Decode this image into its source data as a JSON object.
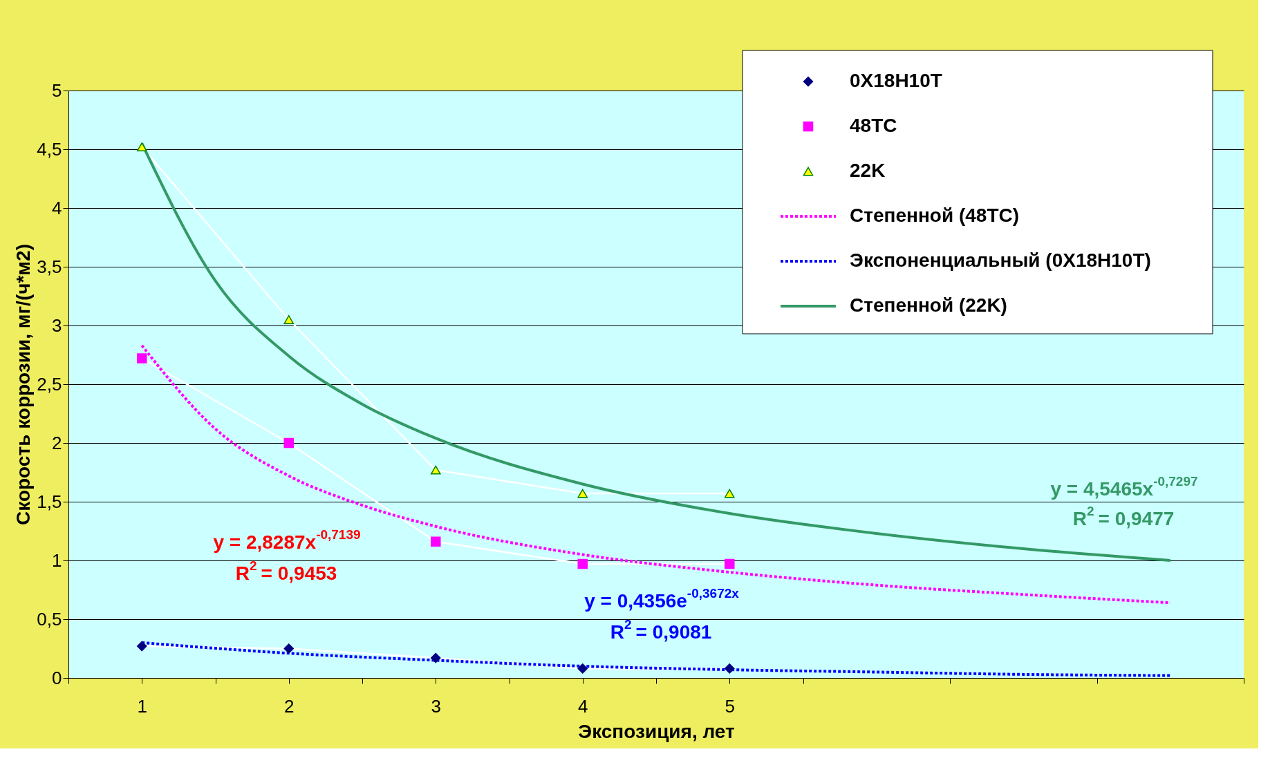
{
  "chart_data": {
    "type": "line",
    "xlabel": "Экспозиция, лет",
    "ylabel": "Скорость коррозии, мг/(ч*м2)",
    "xlim": [
      0.5,
      8.5
    ],
    "xticks": [
      {
        "value": 0.5,
        "label": null
      },
      {
        "value": 1,
        "label": "1"
      },
      {
        "value": 1.5,
        "label": null
      },
      {
        "value": 2,
        "label": "2"
      },
      {
        "value": 2.5,
        "label": null
      },
      {
        "value": 3,
        "label": "3"
      },
      {
        "value": 3.5,
        "label": null
      },
      {
        "value": 4,
        "label": "4"
      },
      {
        "value": 4.5,
        "label": null
      },
      {
        "value": 5,
        "label": "5"
      },
      {
        "value": 5.5,
        "label": null
      },
      {
        "value": 6.5,
        "label": null
      },
      {
        "value": 7.5,
        "label": null
      },
      {
        "value": 8.5,
        "label": null
      }
    ],
    "ylim": [
      0,
      5
    ],
    "yticks": [
      0,
      {
        "value": 0.5,
        "label": "0,5"
      },
      1,
      {
        "value": 1.5,
        "label": "1,5"
      },
      2,
      {
        "value": 2.5,
        "label": "2,5"
      },
      3,
      {
        "value": 3.5,
        "label": "3,5"
      },
      4,
      {
        "value": 4.5,
        "label": "4,5"
      },
      5
    ],
    "grid": "y",
    "legend": "top right",
    "series": [
      {
        "name": "0X18H10T",
        "marker": "diamond",
        "color": "#000080",
        "x": [
          1,
          2,
          3,
          4,
          5
        ],
        "values": [
          0.27,
          0.25,
          0.17,
          0.08,
          0.08
        ]
      },
      {
        "name": "48TC",
        "marker": "square",
        "color": "#ff00ff",
        "x": [
          1,
          2,
          3,
          4,
          5
        ],
        "values": [
          2.72,
          2.0,
          1.16,
          0.97,
          0.97
        ]
      },
      {
        "name": "22K",
        "marker": "triangle",
        "color": "#ffff00",
        "x": [
          1,
          2,
          3,
          4,
          5
        ],
        "values": [
          4.52,
          3.05,
          1.77,
          1.57,
          1.57
        ]
      },
      {
        "name": "Степенной (48TC)",
        "marker": "none",
        "line_style": "dotted",
        "color": "#ff00ff",
        "x": [
          1,
          1.5,
          2,
          2.5,
          3,
          4,
          5,
          6,
          7,
          8
        ],
        "values": [
          2.83,
          2.12,
          1.72,
          1.47,
          1.29,
          1.05,
          0.9,
          0.79,
          0.71,
          0.64
        ]
      },
      {
        "name": "Экспоненциальный (0X18H10T)",
        "marker": "none",
        "line_style": "dotted",
        "color": "#0000ff",
        "x": [
          1,
          2,
          3,
          4,
          5,
          6,
          7,
          8
        ],
        "values": [
          0.3,
          0.21,
          0.15,
          0.1,
          0.07,
          0.05,
          0.03,
          0.02
        ]
      },
      {
        "name": "Степенной (22K)",
        "marker": "none",
        "line_style": "solid",
        "color": "#339966",
        "x": [
          1,
          1.5,
          2,
          2.5,
          3,
          4,
          5,
          6,
          7,
          8
        ],
        "values": [
          4.55,
          3.38,
          2.74,
          2.33,
          2.04,
          1.65,
          1.4,
          1.23,
          1.1,
          1.0
        ]
      }
    ],
    "annotations": [
      "y = 2,8287x$^{-0,7139}$",
      "R$^{2}$ = 0,9453",
      "y = 0,4356e$^{-0,3672x}$",
      "R$^{2}$ = 0,9081",
      "y = 4,5465x$^{-0,7297}$",
      "R$^{2}$ = 0,9477"
    ]
  }
}
